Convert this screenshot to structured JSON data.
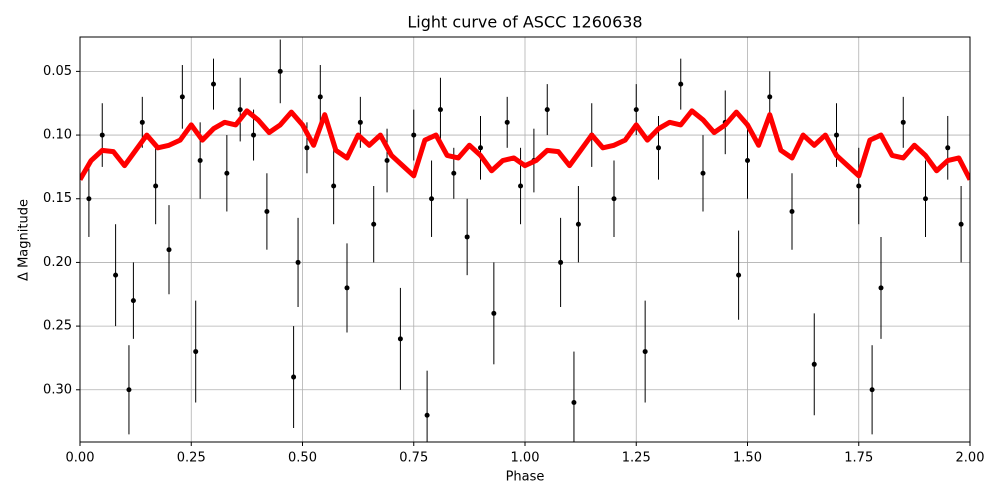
{
  "chart_data": {
    "type": "errorbar_line",
    "title": "Light curve of ASCC 1260638",
    "x_label": "Phase",
    "y_label": "Δ Magnitude",
    "xlim": [
      0,
      2
    ],
    "ylim": [
      0.023,
      0.341
    ],
    "y_inverted": true,
    "grid": true,
    "xticks": [
      {
        "value": 0,
        "label": "0.00"
      },
      0.25,
      {
        "value": 0.5,
        "label": "0.50"
      },
      0.75,
      {
        "value": 1,
        "label": "1.00"
      },
      1.25,
      {
        "value": 1.5,
        "label": "1.50"
      },
      1.75,
      {
        "value": 2,
        "label": "2.00"
      }
    ],
    "yticks": [
      0.05,
      {
        "value": 0.1,
        "label": "0.10"
      },
      0.15,
      {
        "value": 0.2,
        "label": "0.20"
      },
      0.25,
      {
        "value": 0.3,
        "label": "0.30"
      }
    ],
    "points": {
      "color": "#000000",
      "x": [
        0.02,
        0.05,
        0.08,
        0.11,
        0.12,
        0.14,
        0.17,
        0.2,
        0.23,
        0.26,
        0.27,
        0.3,
        0.33,
        0.36,
        0.39,
        0.42,
        0.45,
        0.48,
        0.49,
        0.51,
        0.54,
        0.57,
        0.6,
        0.63,
        0.66,
        0.69,
        0.72,
        0.75,
        0.78,
        0.79,
        0.81,
        0.84,
        0.87,
        0.9,
        0.93,
        0.96,
        0.99,
        1.02,
        1.05,
        1.08,
        1.11,
        1.12,
        1.15,
        1.2,
        1.25,
        1.27,
        1.3,
        1.35,
        1.4,
        1.45,
        1.48,
        1.5,
        1.55,
        1.6,
        1.65,
        1.7,
        1.75,
        1.78,
        1.8,
        1.85,
        1.9,
        1.95,
        1.98
      ],
      "values": [
        0.15,
        0.1,
        0.21,
        0.3,
        0.23,
        0.09,
        0.14,
        0.19,
        0.07,
        0.27,
        0.12,
        0.06,
        0.13,
        0.08,
        0.1,
        0.16,
        0.05,
        0.29,
        0.2,
        0.11,
        0.07,
        0.14,
        0.22,
        0.09,
        0.17,
        0.12,
        0.26,
        0.1,
        0.32,
        0.15,
        0.08,
        0.13,
        0.18,
        0.11,
        0.24,
        0.09,
        0.14,
        0.12,
        0.08,
        0.2,
        0.31,
        0.17,
        0.1,
        0.15,
        0.08,
        0.27,
        0.11,
        0.06,
        0.13,
        0.09,
        0.21,
        0.12,
        0.07,
        0.16,
        0.28,
        0.1,
        0.14,
        0.3,
        0.22,
        0.09,
        0.15,
        0.11,
        0.17
      ],
      "errors": [
        0.03,
        0.025,
        0.04,
        0.035,
        0.03,
        0.02,
        0.03,
        0.035,
        0.025,
        0.04,
        0.03,
        0.02,
        0.03,
        0.025,
        0.02,
        0.03,
        0.025,
        0.04,
        0.035,
        0.02,
        0.025,
        0.03,
        0.035,
        0.02,
        0.03,
        0.025,
        0.04,
        0.02,
        0.035,
        0.03,
        0.025,
        0.02,
        0.03,
        0.025,
        0.04,
        0.02,
        0.03,
        0.025,
        0.02,
        0.035,
        0.04,
        0.03,
        0.025,
        0.03,
        0.02,
        0.04,
        0.025,
        0.02,
        0.03,
        0.025,
        0.035,
        0.03,
        0.02,
        0.03,
        0.04,
        0.025,
        0.03,
        0.035,
        0.04,
        0.02,
        0.03,
        0.025,
        0.03
      ]
    },
    "curve": {
      "color": "#ff0000",
      "x": [
        0,
        0.025,
        0.05,
        0.075,
        0.1,
        0.125,
        0.15,
        0.175,
        0.2,
        0.225,
        0.25,
        0.275,
        0.3,
        0.325,
        0.35,
        0.375,
        0.4,
        0.425,
        0.45,
        0.475,
        0.5,
        0.525,
        0.55,
        0.575,
        0.6,
        0.625,
        0.65,
        0.675,
        0.7,
        0.725,
        0.75,
        0.775,
        0.8,
        0.825,
        0.85,
        0.875,
        0.9,
        0.925,
        0.95,
        0.975,
        1,
        1.025,
        1.05,
        1.075,
        1.1,
        1.125,
        1.15,
        1.175,
        1.2,
        1.225,
        1.25,
        1.275,
        1.3,
        1.325,
        1.35,
        1.375,
        1.4,
        1.425,
        1.45,
        1.475,
        1.5,
        1.525,
        1.55,
        1.575,
        1.6,
        1.625,
        1.65,
        1.675,
        1.7,
        1.725,
        1.75,
        1.775,
        1.8,
        1.825,
        1.85,
        1.875,
        1.9,
        1.925,
        1.95,
        1.975,
        2
      ],
      "values": [
        0.135,
        0.12,
        0.112,
        0.113,
        0.124,
        0.112,
        0.1,
        0.11,
        0.108,
        0.104,
        0.092,
        0.104,
        0.095,
        0.09,
        0.092,
        0.081,
        0.088,
        0.098,
        0.092,
        0.082,
        0.092,
        0.108,
        0.084,
        0.112,
        0.118,
        0.1,
        0.108,
        0.1,
        0.116,
        0.124,
        0.132,
        0.104,
        0.1,
        0.116,
        0.118,
        0.108,
        0.116,
        0.128,
        0.12,
        0.118,
        0.124,
        0.12,
        0.112,
        0.113,
        0.124,
        0.112,
        0.1,
        0.11,
        0.108,
        0.104,
        0.092,
        0.104,
        0.095,
        0.09,
        0.092,
        0.081,
        0.088,
        0.098,
        0.092,
        0.082,
        0.092,
        0.108,
        0.084,
        0.112,
        0.118,
        0.1,
        0.108,
        0.1,
        0.116,
        0.124,
        0.132,
        0.104,
        0.1,
        0.116,
        0.118,
        0.108,
        0.116,
        0.128,
        0.12,
        0.118,
        0.135
      ]
    }
  }
}
